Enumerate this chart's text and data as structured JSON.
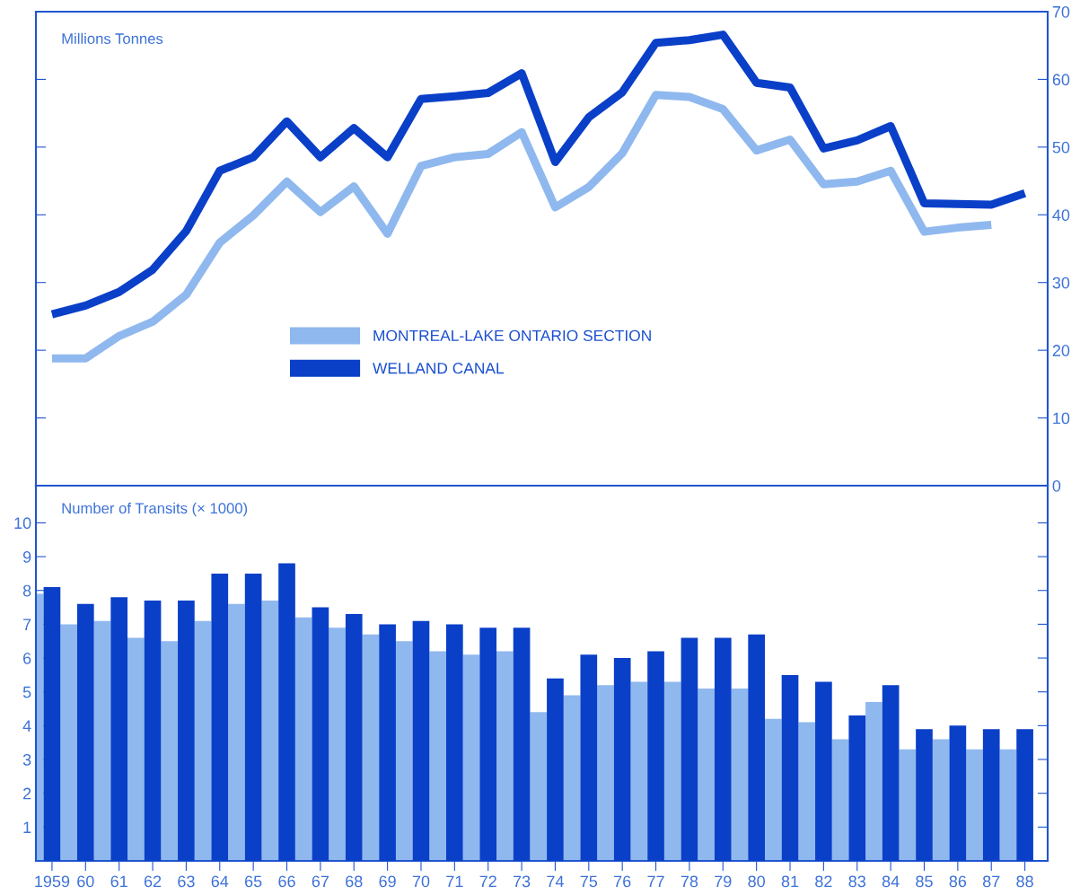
{
  "chart_data": [
    {
      "type": "line",
      "ylabel": "Millions Tonnes",
      "categories": [
        "1959",
        "60",
        "61",
        "62",
        "63",
        "64",
        "65",
        "66",
        "67",
        "68",
        "69",
        "70",
        "71",
        "72",
        "73",
        "74",
        "75",
        "76",
        "77",
        "78",
        "79",
        "80",
        "81",
        "82",
        "83",
        "84",
        "85",
        "86",
        "87",
        "88"
      ],
      "ylim": [
        0,
        70
      ],
      "yticks": [
        0,
        10,
        20,
        30,
        40,
        50,
        60,
        70
      ],
      "tick_labels": "y",
      "legend": "bottom",
      "series": [
        {
          "name": "MONTREAL-LAKE ONTARIO SECTION",
          "color": "#8fb8ee",
          "values": [
            18.8,
            18.8,
            22.1,
            24.2,
            28.2,
            35.9,
            39.9,
            44.9,
            40.4,
            44.2,
            37.2,
            47.2,
            48.5,
            49.0,
            52.2,
            41.1,
            44.1,
            49.1,
            57.7,
            57.4,
            55.6,
            49.5,
            51.1,
            44.5,
            44.9,
            46.5,
            37.5,
            38.1,
            38.5,
            null
          ]
        },
        {
          "name": "WELLAND CANAL",
          "color": "#0a3fc8",
          "values": [
            25.3,
            26.6,
            28.6,
            31.9,
            37.6,
            46.5,
            48.5,
            53.8,
            48.5,
            52.8,
            48.5,
            57.1,
            57.5,
            58.0,
            60.9,
            47.8,
            54.4,
            58.1,
            65.4,
            65.8,
            66.6,
            59.5,
            58.8,
            49.8,
            51.0,
            53.1,
            41.7,
            41.6,
            41.5,
            43.2
          ]
        }
      ]
    },
    {
      "type": "bar",
      "ylabel": "Number of Transits (× 1000)",
      "categories": [
        "1959",
        "60",
        "61",
        "62",
        "63",
        "64",
        "65",
        "66",
        "67",
        "68",
        "69",
        "70",
        "71",
        "72",
        "73",
        "74",
        "75",
        "76",
        "77",
        "78",
        "79",
        "80",
        "81",
        "82",
        "83",
        "84",
        "85",
        "86",
        "87",
        "88"
      ],
      "ylim": [
        0,
        11.1
      ],
      "yticks": [
        1,
        2,
        3,
        4,
        5,
        6,
        7,
        8,
        9,
        10
      ],
      "series": [
        {
          "color": "#8fb8ee",
          "values": [
            7.9,
            7.0,
            7.1,
            6.6,
            6.5,
            7.1,
            7.6,
            7.7,
            7.2,
            6.9,
            6.7,
            6.5,
            6.2,
            6.1,
            6.2,
            4.4,
            4.9,
            5.2,
            5.3,
            5.3,
            5.1,
            5.1,
            4.2,
            4.1,
            3.6,
            4.7,
            3.3,
            3.6,
            3.3,
            3.3
          ]
        },
        {
          "color": "#0a3fc8",
          "values": [
            8.1,
            7.6,
            7.8,
            7.7,
            7.7,
            8.5,
            8.5,
            8.8,
            7.5,
            7.3,
            7.0,
            7.1,
            7.0,
            6.9,
            6.9,
            5.4,
            6.1,
            6.0,
            6.2,
            6.6,
            6.6,
            6.7,
            5.5,
            5.3,
            4.3,
            5.2,
            3.9,
            4.0,
            3.9,
            3.9
          ]
        }
      ]
    }
  ]
}
